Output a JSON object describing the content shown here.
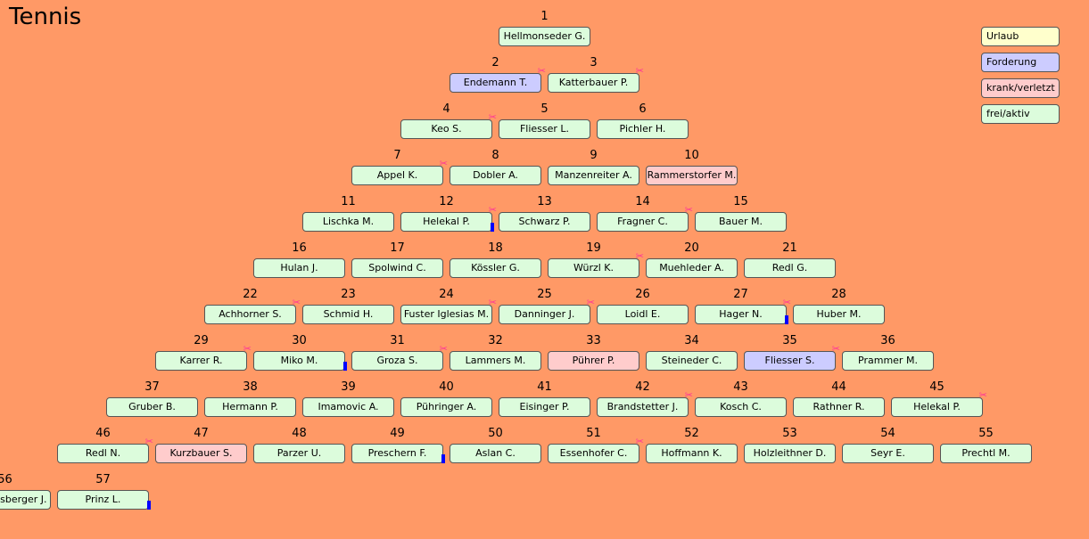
{
  "title": "Tennis",
  "colors": {
    "background": "#ff9966",
    "frei": "#dcfcdc",
    "Forderung": "#ccccff",
    "krank": "#ffcccc",
    "Urlaub": "#ffffcc",
    "scissors": "#ff3399",
    "marker": "#0000ff"
  },
  "legend": [
    {
      "label": "Urlaub",
      "status": "urlaub"
    },
    {
      "label": "Forderung",
      "status": "ford"
    },
    {
      "label": "krank/verletzt",
      "status": "krank"
    },
    {
      "label": "frei/aktiv",
      "status": "frei"
    }
  ],
  "rows": [
    [
      {
        "n": "1",
        "name": "Hellmonseder G."
      }
    ],
    [
      {
        "n": "2",
        "name": "Endemann T.",
        "status": "ford",
        "sc": 1
      },
      {
        "n": "3",
        "name": "Katterbauer P.",
        "sc": 1
      }
    ],
    [
      {
        "n": "4",
        "name": "Keo S.",
        "sc": 1
      },
      {
        "n": "5",
        "name": "Fliesser L."
      },
      {
        "n": "6",
        "name": "Pichler H."
      }
    ],
    [
      {
        "n": "7",
        "name": "Appel K.",
        "sc": 1
      },
      {
        "n": "8",
        "name": "Dobler A."
      },
      {
        "n": "9",
        "name": "Manzenreiter A."
      },
      {
        "n": "10",
        "name": "Rammerstorfer M.",
        "status": "krank"
      }
    ],
    [
      {
        "n": "11",
        "name": "Lischka M."
      },
      {
        "n": "12",
        "name": "Helekal P.",
        "sc": 1,
        "mk": 1
      },
      {
        "n": "13",
        "name": "Schwarz P."
      },
      {
        "n": "14",
        "name": "Fragner C.",
        "sc": 1
      },
      {
        "n": "15",
        "name": "Bauer M."
      }
    ],
    [
      {
        "n": "16",
        "name": "Hulan J."
      },
      {
        "n": "17",
        "name": "Spolwind C."
      },
      {
        "n": "18",
        "name": "Kössler G."
      },
      {
        "n": "19",
        "name": "Würzl K.",
        "sc": 1
      },
      {
        "n": "20",
        "name": "Muehleder A."
      },
      {
        "n": "21",
        "name": "Redl G."
      }
    ],
    [
      {
        "n": "22",
        "name": "Achhorner S.",
        "sc": 1
      },
      {
        "n": "23",
        "name": "Schmid H."
      },
      {
        "n": "24",
        "name": "Fuster Iglesias M.",
        "sc": 1
      },
      {
        "n": "25",
        "name": "Danninger J.",
        "sc": 1
      },
      {
        "n": "26",
        "name": "Loidl E."
      },
      {
        "n": "27",
        "name": "Hager N.",
        "sc": 1,
        "mk": 1
      },
      {
        "n": "28",
        "name": "Huber M."
      }
    ],
    [
      {
        "n": "29",
        "name": "Karrer R.",
        "sc": 1
      },
      {
        "n": "30",
        "name": "Miko M.",
        "mk": 1
      },
      {
        "n": "31",
        "name": "Groza S.",
        "sc": 1
      },
      {
        "n": "32",
        "name": "Lammers M."
      },
      {
        "n": "33",
        "name": "Pührer P.",
        "status": "krank"
      },
      {
        "n": "34",
        "name": "Steineder C."
      },
      {
        "n": "35",
        "name": "Fliesser S.",
        "status": "ford",
        "sc": 1
      },
      {
        "n": "36",
        "name": "Prammer M."
      }
    ],
    [
      {
        "n": "37",
        "name": "Gruber B."
      },
      {
        "n": "38",
        "name": "Hermann P."
      },
      {
        "n": "39",
        "name": "Imamovic A."
      },
      {
        "n": "40",
        "name": "Pühringer A."
      },
      {
        "n": "41",
        "name": "Eisinger P."
      },
      {
        "n": "42",
        "name": "Brandstetter J.",
        "sc": 1
      },
      {
        "n": "43",
        "name": "Kosch C."
      },
      {
        "n": "44",
        "name": "Rathner R."
      },
      {
        "n": "45",
        "name": "Helekal P.",
        "sc": 1
      }
    ],
    [
      {
        "n": "46",
        "name": "Redl N.",
        "sc": 1
      },
      {
        "n": "47",
        "name": "Kurzbauer S.",
        "status": "krank"
      },
      {
        "n": "48",
        "name": "Parzer U."
      },
      {
        "n": "49",
        "name": "Preschern F.",
        "mk": 1
      },
      {
        "n": "50",
        "name": "Aslan C."
      },
      {
        "n": "51",
        "name": "Essenhofer C.",
        "sc": 1
      },
      {
        "n": "52",
        "name": "Hoffmann K."
      },
      {
        "n": "53",
        "name": "Holzleithner D."
      },
      {
        "n": "54",
        "name": "Seyr E."
      },
      {
        "n": "55",
        "name": "Prechtl M."
      }
    ],
    [
      {
        "n": "56",
        "name": "Rumpelsberger J."
      },
      {
        "n": "57",
        "name": "Prinz L.",
        "mk": 1
      }
    ]
  ]
}
